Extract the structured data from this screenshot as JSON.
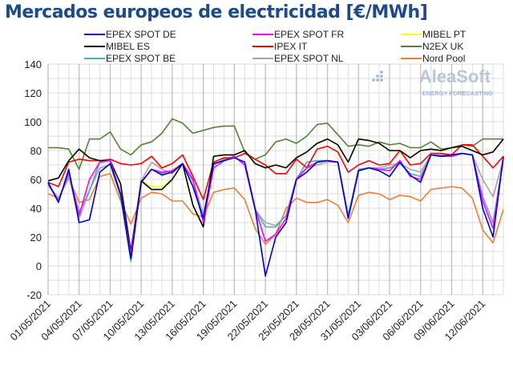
{
  "chart_data": {
    "type": "line",
    "title": "Mercados europeos de electricidad [€/MWh]",
    "xlabel": "",
    "ylabel": "",
    "ylim": [
      -20,
      140
    ],
    "yticks": [
      -20,
      0,
      20,
      40,
      60,
      80,
      100,
      120,
      140
    ],
    "grid": true,
    "legend_position": "top",
    "x": [
      "01/05/2021",
      "02/05/2021",
      "03/05/2021",
      "04/05/2021",
      "05/05/2021",
      "06/05/2021",
      "07/05/2021",
      "08/05/2021",
      "09/05/2021",
      "10/05/2021",
      "11/05/2021",
      "12/05/2021",
      "13/05/2021",
      "14/05/2021",
      "15/05/2021",
      "16/05/2021",
      "17/05/2021",
      "18/05/2021",
      "19/05/2021",
      "20/05/2021",
      "21/05/2021",
      "22/05/2021",
      "23/05/2021",
      "24/05/2021",
      "25/05/2021",
      "26/05/2021",
      "27/05/2021",
      "28/05/2021",
      "29/05/2021",
      "30/05/2021",
      "31/05/2021",
      "01/06/2021",
      "02/06/2021",
      "03/06/2021",
      "04/06/2021",
      "05/06/2021",
      "06/06/2021",
      "07/06/2021",
      "08/06/2021",
      "09/06/2021",
      "10/06/2021",
      "11/06/2021",
      "12/06/2021",
      "13/06/2021",
      "14/06/2021"
    ],
    "xtick_labels": [
      "01/05/2021",
      "04/05/2021",
      "07/05/2021",
      "10/05/2021",
      "13/05/2021",
      "16/05/2021",
      "19/05/2021",
      "22/05/2021",
      "25/05/2021",
      "28/05/2021",
      "31/05/2021",
      "03/06/2021",
      "06/06/2021",
      "09/06/2021",
      "12/06/2021"
    ],
    "series": [
      {
        "name": "N2EX UK",
        "color": "#548235",
        "values": [
          82,
          82,
          81,
          67,
          88,
          88,
          93,
          81,
          77,
          84,
          86,
          92,
          102,
          99,
          92,
          94,
          96,
          97,
          97,
          79,
          74,
          77,
          86,
          88,
          85,
          90,
          98,
          99,
          91,
          83,
          84,
          83,
          86,
          84,
          85,
          82,
          82,
          86,
          81,
          82,
          84,
          83,
          88,
          88,
          88
        ]
      },
      {
        "name": "Nord Pool",
        "color": "#ed7d31",
        "values": [
          50,
          47,
          61,
          44,
          46,
          62,
          64,
          45,
          29,
          47,
          51,
          50,
          45,
          45,
          36,
          34,
          51,
          53,
          54,
          46,
          26,
          15,
          22,
          40,
          47,
          44,
          44,
          46,
          42,
          30,
          49,
          51,
          50,
          46,
          49,
          48,
          45,
          53,
          54,
          55,
          54,
          47,
          25,
          16,
          39
        ]
      },
      {
        "name": "EPEX SPOT NL",
        "color": "#a5a5a5",
        "values": [
          56,
          47,
          62,
          33,
          52,
          68,
          70,
          48,
          10,
          59,
          72,
          67,
          64,
          71,
          59,
          36,
          70,
          74,
          76,
          70,
          39,
          30,
          28,
          35,
          61,
          68,
          70,
          72,
          72,
          35,
          67,
          68,
          68,
          70,
          71,
          67,
          65,
          77,
          77,
          77,
          78,
          77,
          60,
          48,
          74
        ]
      },
      {
        "name": "EPEX SPOT BE",
        "color": "#4bacc6",
        "values": [
          56,
          46,
          63,
          37,
          52,
          72,
          73,
          48,
          3,
          58,
          67,
          64,
          66,
          71,
          59,
          33,
          70,
          74,
          76,
          70,
          39,
          27,
          27,
          35,
          60,
          72,
          73,
          73,
          72,
          35,
          67,
          68,
          67,
          68,
          71,
          64,
          62,
          77,
          76,
          76,
          78,
          77,
          48,
          30,
          74
        ]
      },
      {
        "name": "IPEX IT",
        "color": "#ff0000",
        "values": [
          58,
          55,
          72,
          74,
          73,
          73,
          74,
          71,
          70,
          71,
          76,
          68,
          71,
          77,
          62,
          46,
          72,
          75,
          75,
          78,
          74,
          70,
          64,
          64,
          74,
          68,
          81,
          83,
          79,
          65,
          70,
          73,
          70,
          71,
          80,
          70,
          71,
          78,
          78,
          77,
          84,
          84,
          76,
          68,
          76
        ]
      },
      {
        "name": "MIBEL PT",
        "color": "#ffff00",
        "values": [
          59,
          61,
          73,
          81,
          75,
          73,
          73,
          57,
          10,
          59,
          55,
          55,
          60,
          71,
          42,
          27,
          76,
          77,
          77,
          80,
          71,
          68,
          70,
          68,
          75,
          79,
          85,
          88,
          84,
          72,
          88,
          87,
          85,
          80,
          80,
          75,
          80,
          81,
          80,
          82,
          83,
          80,
          77,
          79,
          88
        ]
      },
      {
        "name": "MIBEL ES",
        "color": "#000000",
        "values": [
          59,
          61,
          73,
          81,
          75,
          73,
          73,
          57,
          10,
          59,
          53,
          53,
          60,
          71,
          42,
          27,
          76,
          77,
          77,
          80,
          71,
          68,
          70,
          68,
          75,
          79,
          85,
          88,
          84,
          72,
          88,
          87,
          85,
          80,
          80,
          75,
          80,
          81,
          80,
          82,
          83,
          80,
          77,
          79,
          88
        ]
      },
      {
        "name": "EPEX SPOT FR",
        "color": "#ff00ff",
        "values": [
          57,
          45,
          65,
          35,
          60,
          72,
          73,
          50,
          8,
          58,
          67,
          65,
          66,
          71,
          60,
          30,
          68,
          73,
          76,
          70,
          40,
          17,
          22,
          33,
          60,
          68,
          72,
          73,
          72,
          33,
          66,
          68,
          67,
          66,
          73,
          62,
          60,
          77,
          76,
          76,
          78,
          77,
          45,
          26,
          75
        ]
      },
      {
        "name": "EPEX SPOT DE",
        "color": "#0000cc",
        "values": [
          58,
          44,
          67,
          30,
          32,
          65,
          71,
          50,
          5,
          58,
          67,
          63,
          65,
          71,
          55,
          33,
          71,
          73,
          75,
          72,
          40,
          -7,
          20,
          30,
          60,
          65,
          72,
          73,
          72,
          33,
          66,
          68,
          66,
          62,
          72,
          63,
          58,
          77,
          76,
          77,
          78,
          77,
          40,
          20,
          76
        ]
      }
    ],
    "legend_order": [
      "EPEX SPOT DE",
      "EPEX SPOT FR",
      "MIBEL PT",
      "MIBEL ES",
      "IPEX IT",
      "N2EX UK",
      "EPEX SPOT BE",
      "EPEX SPOT NL",
      "Nord Pool"
    ]
  },
  "watermark": {
    "brand": "AleaSoft",
    "tagline": "ENERGY FORECASTING"
  }
}
